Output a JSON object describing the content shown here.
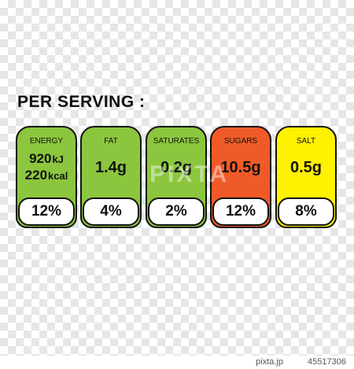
{
  "title": "PER SERVING :",
  "labels": [
    {
      "name": "ENERGY",
      "color": "#8cc63e",
      "lines": [
        {
          "number": "920",
          "unit": "kJ"
        },
        {
          "number": "220",
          "unit": "kcal"
        }
      ],
      "percent": "12%"
    },
    {
      "name": "FAT",
      "color": "#8cc63e",
      "amount": "1.4g",
      "percent": "4%"
    },
    {
      "name": "SATURATES",
      "color": "#8cc63e",
      "amount": "0.2g",
      "percent": "2%"
    },
    {
      "name": "SUGARS",
      "color": "#f05a28",
      "amount": "10.5g",
      "percent": "12%"
    },
    {
      "name": "SALT",
      "color": "#fff200",
      "amount": "0.5g",
      "percent": "8%"
    }
  ],
  "watermark": "PIXTA",
  "footer": {
    "site": "pixta.jp",
    "id": "45517306"
  }
}
